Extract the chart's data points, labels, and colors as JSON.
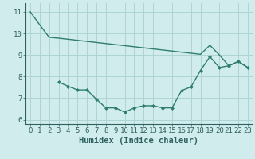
{
  "line1_x": [
    0,
    1,
    2,
    3,
    4,
    5,
    6,
    7,
    8,
    9,
    10,
    11,
    12,
    13,
    14,
    15,
    16,
    17,
    18,
    19,
    20,
    21,
    22,
    23
  ],
  "line1_y": [
    11.0,
    10.4,
    9.82,
    9.78,
    9.73,
    9.68,
    9.63,
    9.58,
    9.53,
    9.48,
    9.43,
    9.38,
    9.33,
    9.28,
    9.23,
    9.18,
    9.13,
    9.08,
    9.03,
    9.45,
    9.0,
    8.5,
    8.7,
    8.42
  ],
  "line2_x": [
    3,
    4,
    5,
    6,
    7,
    8,
    9,
    10,
    11,
    12,
    13,
    14,
    15,
    16,
    17,
    18,
    19,
    20,
    21,
    22,
    23
  ],
  "line2_y": [
    7.75,
    7.55,
    7.38,
    7.38,
    6.95,
    6.55,
    6.55,
    6.35,
    6.55,
    6.65,
    6.65,
    6.55,
    6.55,
    7.35,
    7.52,
    8.28,
    8.92,
    8.42,
    8.5,
    8.7,
    8.42
  ],
  "color": "#2e7d6e",
  "bg_color": "#d0ecec",
  "grid_color": "#aed4d4",
  "xlabel": "Humidex (Indice chaleur)",
  "ylim": [
    5.8,
    11.4
  ],
  "xlim": [
    -0.5,
    23.5
  ],
  "yticks": [
    6,
    7,
    8,
    9,
    10,
    11
  ],
  "xticks": [
    0,
    1,
    2,
    3,
    4,
    5,
    6,
    7,
    8,
    9,
    10,
    11,
    12,
    13,
    14,
    15,
    16,
    17,
    18,
    19,
    20,
    21,
    22,
    23
  ],
  "xlabel_fontsize": 7.5,
  "tick_fontsize": 6.5
}
